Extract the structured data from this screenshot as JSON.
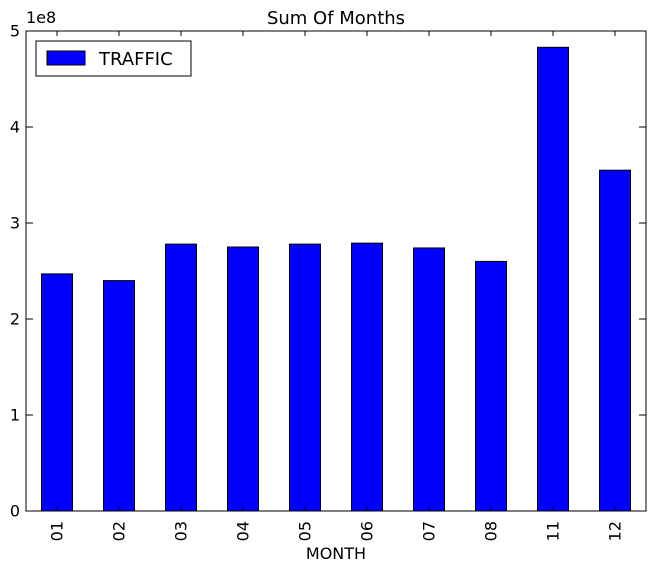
{
  "chart_data": {
    "type": "bar",
    "title": "Sum Of Months",
    "xlabel": "MONTH",
    "ylabel": "",
    "y_scale_label": "1e8",
    "categories": [
      "01",
      "02",
      "03",
      "04",
      "05",
      "06",
      "07",
      "08",
      "11",
      "12"
    ],
    "series": [
      {
        "name": "TRAFFIC",
        "color": "#0000ff",
        "values": [
          247000000,
          240000000,
          278000000,
          275000000,
          278000000,
          279000000,
          274000000,
          260000000,
          483000000,
          355000000
        ]
      }
    ],
    "ylim": [
      0,
      500000000
    ],
    "yticks": [
      0,
      100000000,
      200000000,
      300000000,
      400000000,
      500000000
    ],
    "ytick_labels": [
      "0",
      "1",
      "2",
      "3",
      "4",
      "5"
    ],
    "grid": false,
    "legend_position": "top-left"
  }
}
